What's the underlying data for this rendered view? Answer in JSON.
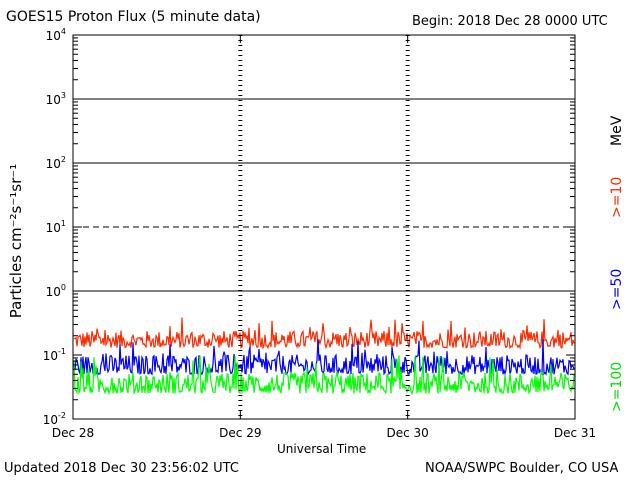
{
  "header": {
    "title": "GOES15 Proton Flux (5 minute data)",
    "begin": "Begin: 2018 Dec 28 0000 UTC"
  },
  "footer": {
    "updated": "Updated 2018 Dec 30 23:56:02 UTC",
    "credit": "NOAA/SWPC Boulder, CO USA"
  },
  "chart_data": {
    "type": "line",
    "xlabel": "Universal Time",
    "ylabel": "Particles cm⁻²s⁻¹sr⁻¹",
    "y_scale": "log",
    "ylim": [
      0.01,
      10000
    ],
    "x_ticks": [
      "Dec 28",
      "Dec 29",
      "Dec 30",
      "Dec 31"
    ],
    "y_ticks": [
      {
        "base": "10",
        "exp": "-2"
      },
      {
        "base": "10",
        "exp": "-1"
      },
      {
        "base": "10",
        "exp": "0"
      },
      {
        "base": "10",
        "exp": "1"
      },
      {
        "base": "10",
        "exp": "2"
      },
      {
        "base": "10",
        "exp": "3"
      },
      {
        "base": "10",
        "exp": "4"
      }
    ],
    "thresholds": [
      {
        "value": 10,
        "style": "dashed"
      },
      {
        "value": 1,
        "style": "solid"
      },
      {
        "value": 100,
        "style": "solid"
      },
      {
        "value": 1000,
        "style": "solid"
      }
    ],
    "energy_unit": "MeV",
    "series": [
      {
        "name": ">=10",
        "color": "#ff2a00",
        "low": 0.13,
        "high": 0.4
      },
      {
        "name": ">=50",
        "color": "#0000ff",
        "low": 0.05,
        "high": 0.18
      },
      {
        "name": ">=100",
        "color": "#00ff00",
        "low": 0.025,
        "high": 0.1
      }
    ]
  }
}
